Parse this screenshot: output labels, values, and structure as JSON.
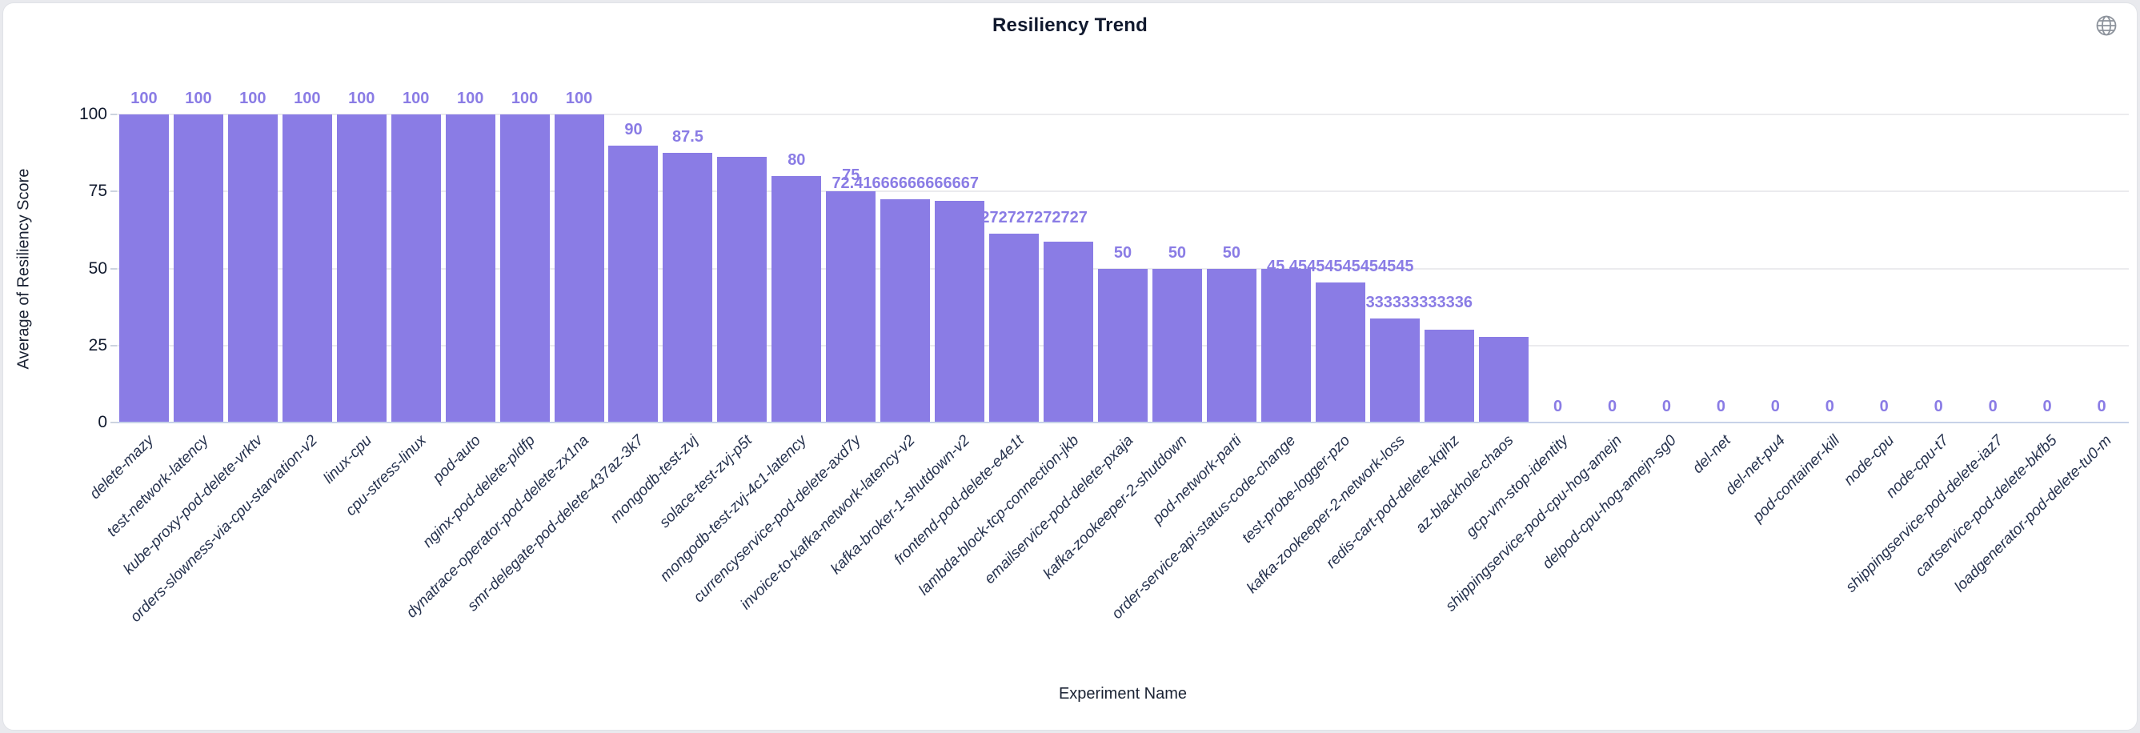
{
  "page": {
    "title": "Resiliency Trend"
  },
  "icons": {
    "globe": "globe-icon"
  },
  "colors": {
    "bar": "#8a7ce5",
    "bar_label": "#8a7ce5",
    "grid": "#ebebee",
    "axis_line": "#c7d2e8",
    "tick_text": "#111a2e",
    "x_label_text": "#26324e",
    "title_text": "#10192e"
  },
  "chart_data": {
    "type": "bar",
    "title": "Resiliency Trend",
    "xlabel": "Experiment Name",
    "ylabel": "Average of Resiliency Score",
    "ylim": [
      0,
      100
    ],
    "yticks": [
      0,
      25,
      50,
      75,
      100
    ],
    "grid": true,
    "legend": false,
    "categories": [
      "delete-mazy",
      "test-network-latency",
      "kube-proxy-pod-delete-vrktv",
      "orders-slowness-via-cpu-starvation-v2",
      "linux-cpu",
      "cpu-stress-linux",
      "pod-auto",
      "nginx-pod-delete-pldfp",
      "dynatrace-operator-pod-delete-zx1na",
      "smr-delegate-pod-delete-437az-3k7",
      "mongodb-test-zvj",
      "solace-test-zvj-p5t",
      "mongodb-test-zvj-4c1-latency",
      "currencyservice-pod-delete-axd7y",
      "invoice-to-kafka-network-latency-v2",
      "kafka-broker-1-shutdown-v2",
      "frontend-pod-delete-e4e1t",
      "lambda-block-tcp-connection-jkb",
      "emailservice-pod-delete-pxaja",
      "kafka-zookeeper-2-shutdown",
      "pod-network-parti",
      "order-service-api-status-code-change",
      "test-probe-logger-pzo",
      "kafka-zookeeper-2-network-loss",
      "redis-cart-pod-delete-kqihz",
      "az-blackhole-chaos",
      "gcp-vm-stop-identity",
      "shippingservice-pod-cpu-hog-amejn",
      "delpod-cpu-hog-amejn-sg0",
      "del-net",
      "del-net-pu4",
      "pod-container-kill",
      "node-cpu",
      "node-cpu-t7",
      "shippingservice-pod-delete-iaz7",
      "cartservice-pod-delete-bkfb5",
      "loadgenerator-pod-delete-tu0-m"
    ],
    "values": [
      100,
      100,
      100,
      100,
      100,
      100,
      100,
      100,
      100,
      90,
      87.5,
      86.36363636363636,
      80,
      75,
      72.41666666666667,
      72,
      61.27272727272727,
      58.7,
      50,
      50,
      50,
      50,
      45.45454545454545,
      33.833333333333336,
      30.2,
      27.8,
      0,
      0,
      0,
      0,
      0,
      0,
      0,
      0,
      0,
      0,
      0
    ],
    "bar_labels": [
      "100",
      "100",
      "100",
      "100",
      "100",
      "100",
      "100",
      "100",
      "100",
      "90",
      "87.5",
      null,
      "80",
      "75",
      "72.41666666666667",
      null,
      "61.27272727272727",
      null,
      "50",
      "50",
      "50",
      null,
      "45.45454545454545",
      "33.833333333333336",
      null,
      null,
      "0",
      "0",
      "0",
      "0",
      "0",
      "0",
      "0",
      "0",
      "0",
      "0",
      "0"
    ]
  }
}
